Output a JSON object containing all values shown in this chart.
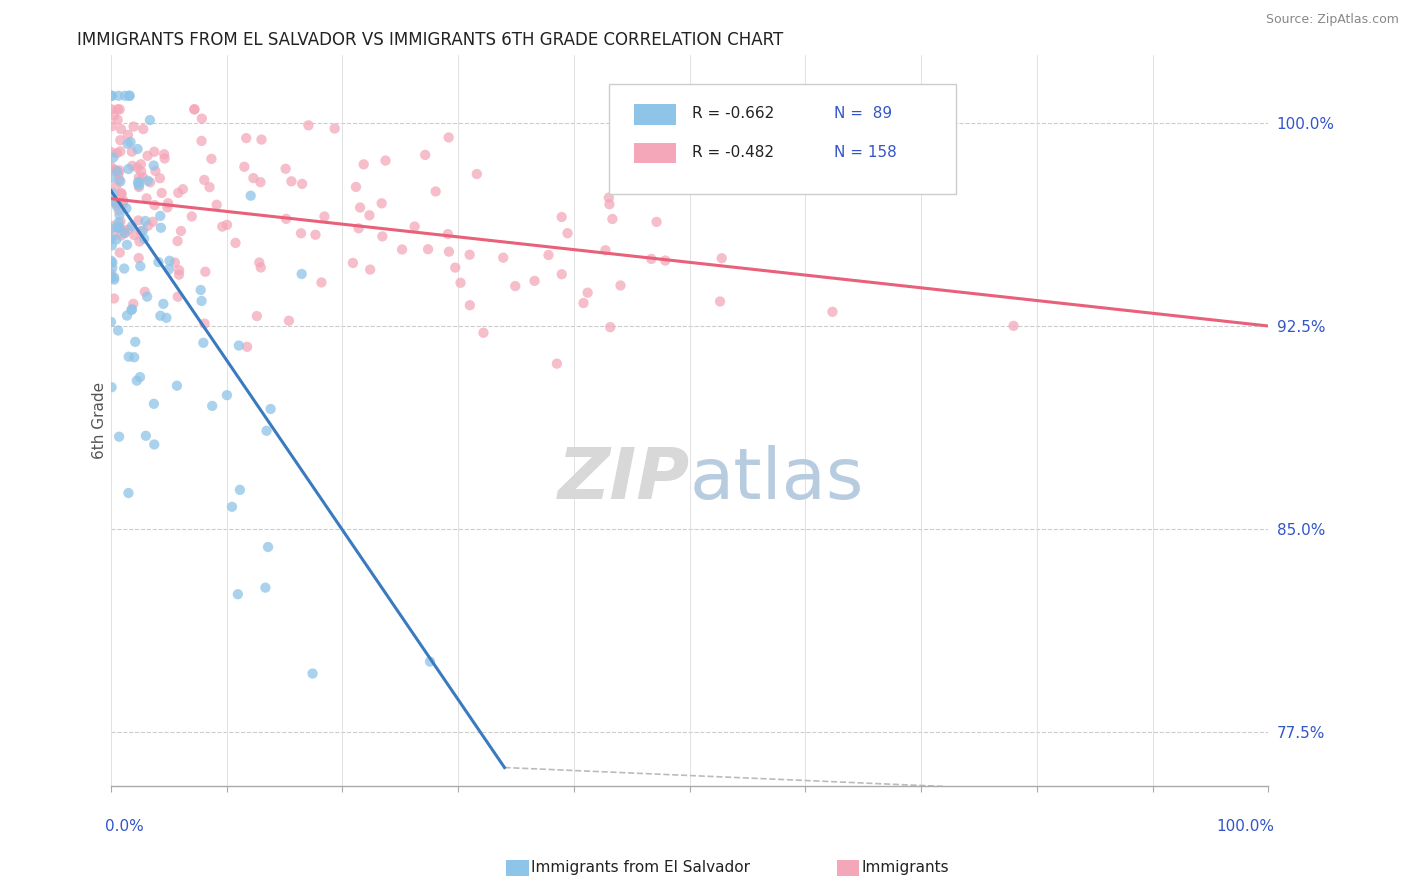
{
  "title": "IMMIGRANTS FROM EL SALVADOR VS IMMIGRANTS 6TH GRADE CORRELATION CHART",
  "source": "Source: ZipAtlas.com",
  "ylabel": "6th Grade",
  "ytick_labels": [
    "77.5%",
    "85.0%",
    "92.5%",
    "100.0%"
  ],
  "ytick_values": [
    0.775,
    0.85,
    0.925,
    1.0
  ],
  "xmin": 0.0,
  "xmax": 1.0,
  "ymin": 0.755,
  "ymax": 1.025,
  "legend_blue_r": "R = -0.662",
  "legend_blue_n": "N =  89",
  "legend_pink_r": "R = -0.482",
  "legend_pink_n": "N = 158",
  "blue_color": "#8ec4e8",
  "pink_color": "#f4a7b9",
  "blue_line_color": "#3a7abf",
  "pink_line_color": "#e8607a",
  "title_color": "#222222",
  "source_color": "#888888",
  "axis_label_color": "#3355cc",
  "blue_n": 89,
  "pink_n": 158,
  "blue_R": -0.662,
  "pink_R": -0.482,
  "blue_line_x0": 0.0,
  "blue_line_y0": 0.975,
  "blue_line_x1": 0.34,
  "blue_line_y1": 0.762,
  "pink_line_x0": 0.0,
  "pink_line_y0": 0.972,
  "pink_line_x1": 1.0,
  "pink_line_y1": 0.925,
  "dash_line_x0": 0.34,
  "dash_line_y0": 0.762,
  "dash_line_x1": 0.72,
  "dash_line_y1": 0.755
}
